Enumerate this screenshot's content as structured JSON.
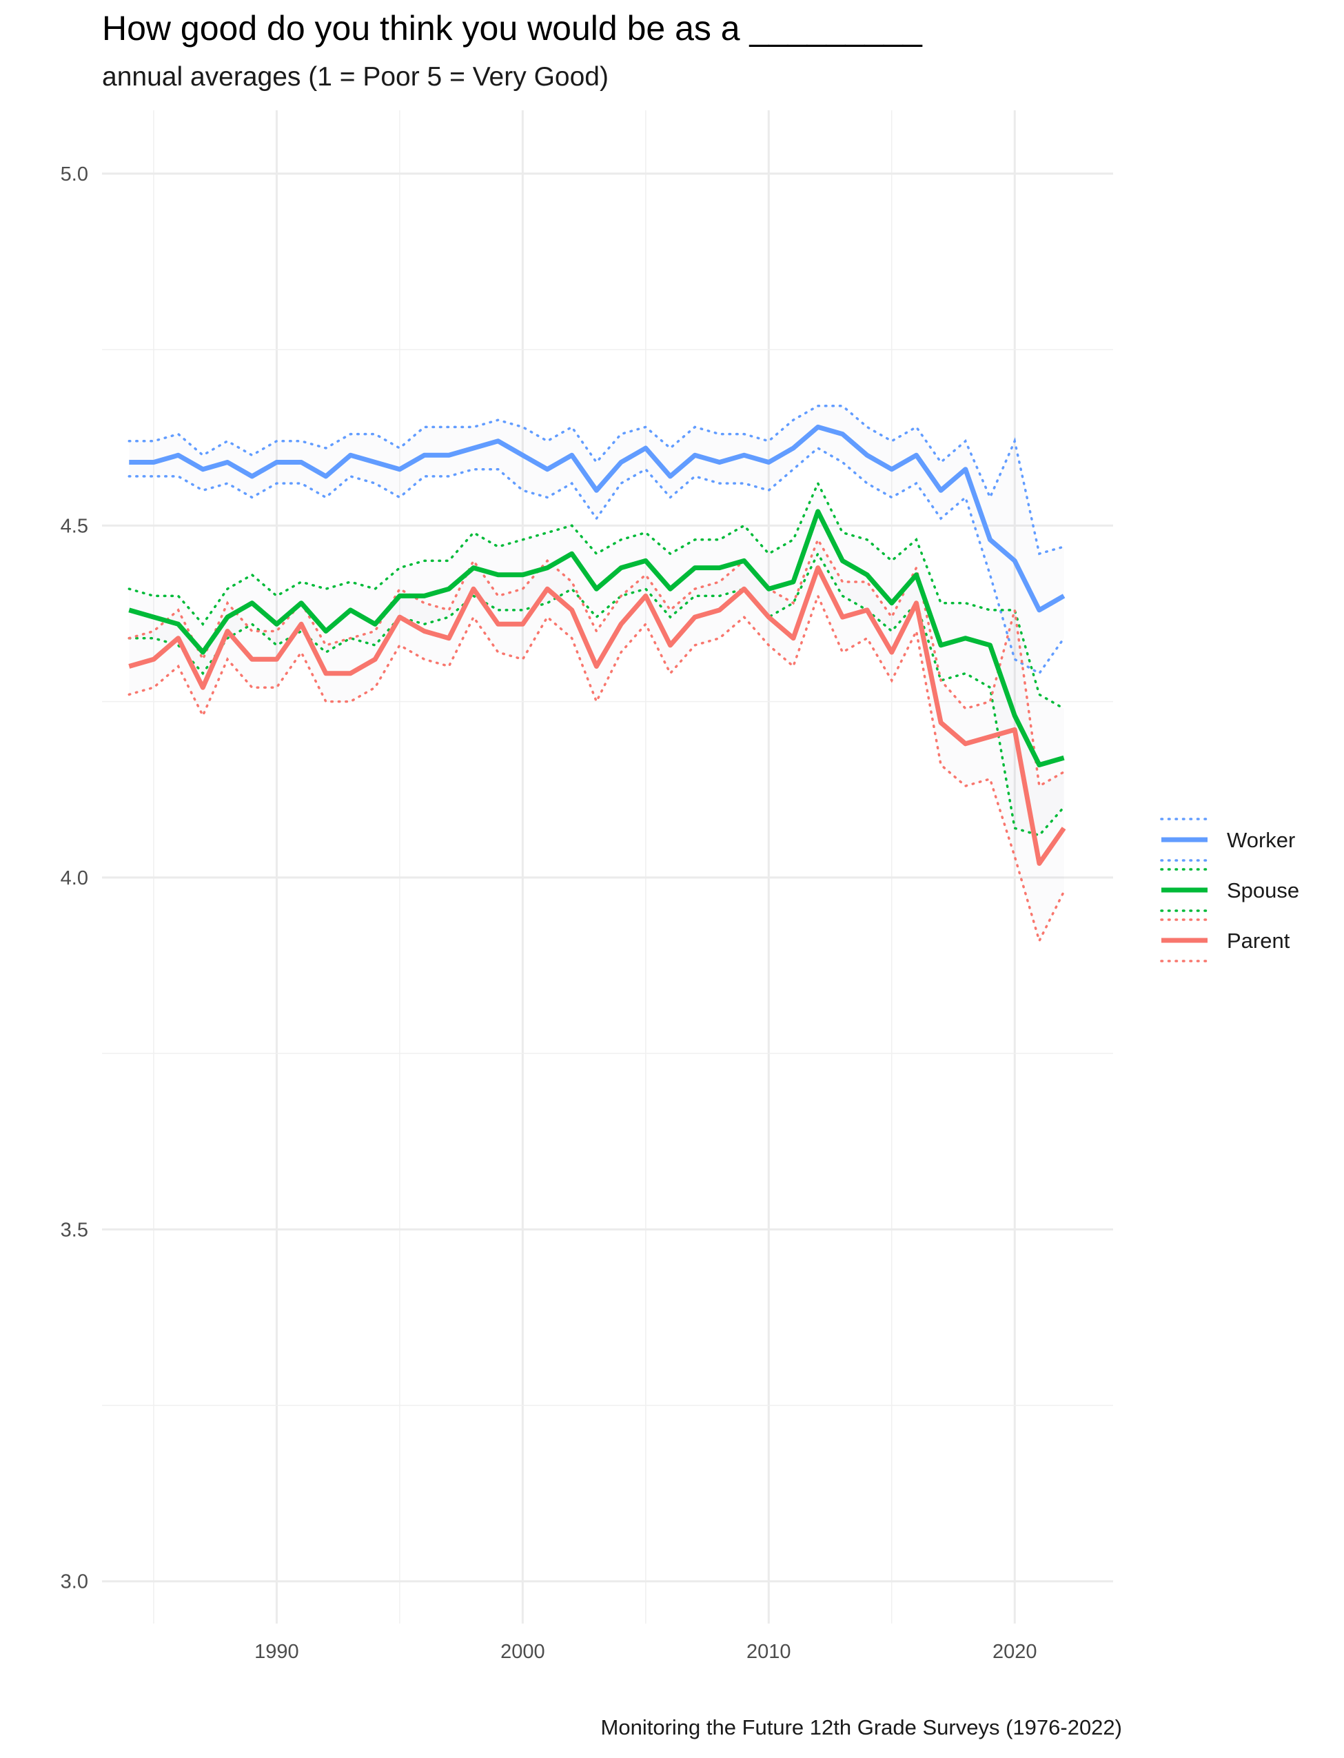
{
  "chart_data": {
    "type": "line",
    "title": "How good do you think you would be as a _________",
    "subtitle": "annual averages (1 = Poor 5 = Very Good)",
    "caption": "Monitoring the Future 12th Grade Surveys (1976-2022)",
    "xlabel": "",
    "ylabel": "",
    "xlim": [
      1982.9,
      2024
    ],
    "ylim": [
      2.94,
      5.09
    ],
    "x_ticks": [
      1990,
      2000,
      2010,
      2020
    ],
    "y_ticks": [
      "3.0",
      "3.5",
      "4.0",
      "4.5",
      "5.0"
    ],
    "grid": true,
    "legend_position": "right",
    "x": [
      1984,
      1985,
      1986,
      1987,
      1988,
      1989,
      1990,
      1991,
      1992,
      1993,
      1994,
      1995,
      1996,
      1997,
      1998,
      1999,
      2000,
      2001,
      2002,
      2003,
      2004,
      2005,
      2006,
      2007,
      2008,
      2009,
      2010,
      2011,
      2012,
      2013,
      2014,
      2015,
      2016,
      2017,
      2018,
      2019,
      2020,
      2021,
      2022
    ],
    "series": [
      {
        "name": "Worker",
        "color": "#619CFF",
        "values": [
          4.59,
          4.59,
          4.6,
          4.58,
          4.59,
          4.57,
          4.59,
          4.59,
          4.57,
          4.6,
          4.59,
          4.58,
          4.6,
          4.6,
          4.61,
          4.62,
          4.6,
          4.58,
          4.6,
          4.55,
          4.59,
          4.61,
          4.57,
          4.6,
          4.59,
          4.6,
          4.59,
          4.61,
          4.64,
          4.63,
          4.6,
          4.58,
          4.6,
          4.55,
          4.58,
          4.48,
          4.45,
          4.38,
          4.4
        ],
        "upper": [
          4.62,
          4.62,
          4.63,
          4.6,
          4.62,
          4.6,
          4.62,
          4.62,
          4.61,
          4.63,
          4.63,
          4.61,
          4.64,
          4.64,
          4.64,
          4.65,
          4.64,
          4.62,
          4.64,
          4.59,
          4.63,
          4.64,
          4.61,
          4.64,
          4.63,
          4.63,
          4.62,
          4.65,
          4.67,
          4.67,
          4.64,
          4.62,
          4.64,
          4.59,
          4.62,
          4.54,
          4.62,
          4.46,
          4.47
        ],
        "lower": [
          4.57,
          4.57,
          4.57,
          4.55,
          4.56,
          4.54,
          4.56,
          4.56,
          4.54,
          4.57,
          4.56,
          4.54,
          4.57,
          4.57,
          4.58,
          4.58,
          4.55,
          4.54,
          4.56,
          4.51,
          4.56,
          4.58,
          4.54,
          4.57,
          4.56,
          4.56,
          4.55,
          4.58,
          4.61,
          4.59,
          4.56,
          4.54,
          4.56,
          4.51,
          4.54,
          4.43,
          4.31,
          4.29,
          4.34
        ]
      },
      {
        "name": "Spouse",
        "color": "#00BA38",
        "values": [
          4.38,
          4.37,
          4.36,
          4.32,
          4.37,
          4.39,
          4.36,
          4.39,
          4.35,
          4.38,
          4.36,
          4.4,
          4.4,
          4.41,
          4.44,
          4.43,
          4.43,
          4.44,
          4.46,
          4.41,
          4.44,
          4.45,
          4.41,
          4.44,
          4.44,
          4.45,
          4.41,
          4.42,
          4.52,
          4.45,
          4.43,
          4.39,
          4.43,
          4.33,
          4.34,
          4.33,
          4.23,
          4.16,
          4.17
        ],
        "upper": [
          4.41,
          4.4,
          4.4,
          4.36,
          4.41,
          4.43,
          4.4,
          4.42,
          4.41,
          4.42,
          4.41,
          4.44,
          4.45,
          4.45,
          4.49,
          4.47,
          4.48,
          4.49,
          4.5,
          4.46,
          4.48,
          4.49,
          4.46,
          4.48,
          4.48,
          4.5,
          4.46,
          4.48,
          4.56,
          4.49,
          4.48,
          4.45,
          4.48,
          4.39,
          4.39,
          4.38,
          4.38,
          4.26,
          4.24
        ],
        "lower": [
          4.34,
          4.34,
          4.33,
          4.29,
          4.34,
          4.36,
          4.33,
          4.35,
          4.32,
          4.34,
          4.33,
          4.37,
          4.36,
          4.37,
          4.4,
          4.38,
          4.38,
          4.39,
          4.41,
          4.37,
          4.4,
          4.41,
          4.37,
          4.4,
          4.4,
          4.41,
          4.37,
          4.39,
          4.46,
          4.4,
          4.38,
          4.35,
          4.39,
          4.28,
          4.29,
          4.27,
          4.07,
          4.06,
          4.1
        ]
      },
      {
        "name": "Parent",
        "color": "#F8766D",
        "values": [
          4.3,
          4.31,
          4.34,
          4.27,
          4.35,
          4.31,
          4.31,
          4.36,
          4.29,
          4.29,
          4.31,
          4.37,
          4.35,
          4.34,
          4.41,
          4.36,
          4.36,
          4.41,
          4.38,
          4.3,
          4.36,
          4.4,
          4.33,
          4.37,
          4.38,
          4.41,
          4.37,
          4.34,
          4.44,
          4.37,
          4.38,
          4.32,
          4.39,
          4.22,
          4.19,
          4.2,
          4.21,
          4.02,
          4.07
        ],
        "upper": [
          4.34,
          4.35,
          4.38,
          4.31,
          4.39,
          4.35,
          4.35,
          4.39,
          4.33,
          4.34,
          4.35,
          4.41,
          4.39,
          4.38,
          4.45,
          4.4,
          4.41,
          4.45,
          4.42,
          4.35,
          4.4,
          4.43,
          4.38,
          4.41,
          4.42,
          4.45,
          4.41,
          4.39,
          4.48,
          4.42,
          4.42,
          4.37,
          4.44,
          4.28,
          4.24,
          4.25,
          4.38,
          4.13,
          4.15
        ],
        "lower": [
          4.26,
          4.27,
          4.3,
          4.23,
          4.31,
          4.27,
          4.27,
          4.32,
          4.25,
          4.25,
          4.27,
          4.33,
          4.31,
          4.3,
          4.37,
          4.32,
          4.31,
          4.37,
          4.34,
          4.25,
          4.32,
          4.36,
          4.29,
          4.33,
          4.34,
          4.37,
          4.33,
          4.3,
          4.4,
          4.32,
          4.34,
          4.28,
          4.35,
          4.16,
          4.13,
          4.14,
          4.03,
          3.91,
          3.98
        ]
      }
    ]
  }
}
